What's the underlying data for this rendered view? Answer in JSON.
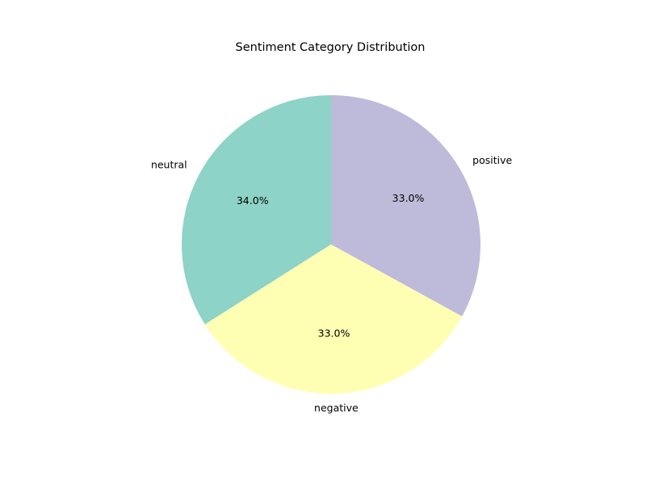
{
  "chart_data": {
    "type": "pie",
    "title": "Sentiment Category Distribution",
    "slices": [
      {
        "label": "neutral",
        "value": 34.0,
        "pct_label": "34.0%",
        "color": "#8dd3c7"
      },
      {
        "label": "negative",
        "value": 33.0,
        "pct_label": "33.0%",
        "color": "#ffffb3"
      },
      {
        "label": "positive",
        "value": 33.0,
        "pct_label": "33.0%",
        "color": "#bebada"
      }
    ],
    "start_angle": 90,
    "direction": "counterclockwise",
    "legend": "none"
  }
}
